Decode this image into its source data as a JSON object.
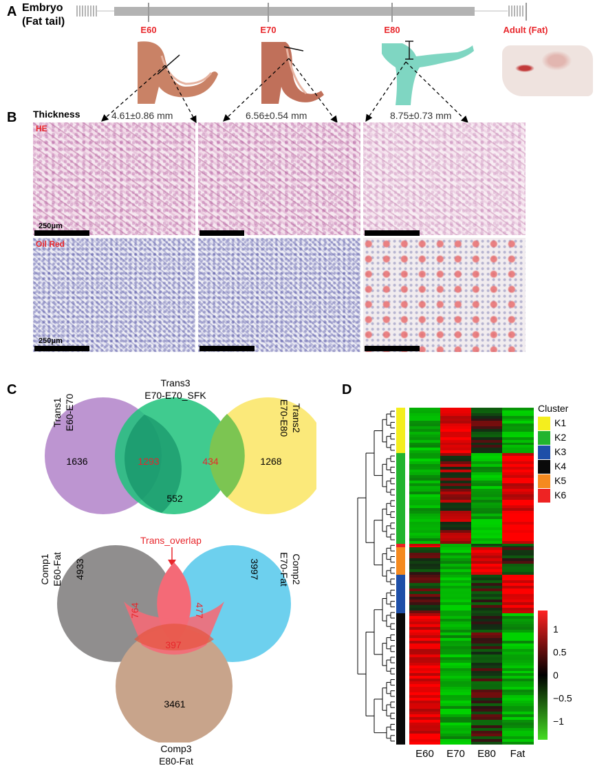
{
  "panelA": {
    "letter": "A",
    "embryo_label_1": "Embryo",
    "embryo_label_2": "(Fat tail)",
    "stages": [
      "E60",
      "E70",
      "E80",
      "Adult (Fat)"
    ]
  },
  "panelB": {
    "letter": "B",
    "thickness_label": "Thickness",
    "thickness_values": [
      "4.61±0.86 mm",
      "6.56±0.54 mm",
      "8.75±0.73 mm"
    ],
    "row_labels": [
      "HE",
      "Oil Red"
    ],
    "scale_labels": [
      "250μm",
      "250μm"
    ]
  },
  "panelC": {
    "letter": "C",
    "top_venn": {
      "sets": [
        {
          "line1": "Trans1",
          "line2": "E60-E70",
          "color": "#b98fcf"
        },
        {
          "line1": "Trans3",
          "line2": "E70-E70_SFK",
          "color": "#1fc27b"
        },
        {
          "line1": "Trans2",
          "line2": "E70-E80",
          "color": "#fbe97a"
        }
      ],
      "counts": {
        "trans1_only": "1636",
        "trans1_trans3": "1293",
        "trans3_trans2": "434",
        "trans2_only": "1268",
        "trans3_only": "552"
      }
    },
    "overlap_label": "Trans_overlap",
    "bottom_venn": {
      "sets": [
        {
          "line1": "Comp1",
          "line2": "E60-Fat",
          "color": "#8a8888"
        },
        {
          "line1": "Comp2",
          "line2": "E70-Fat",
          "color": "#6dd0ee"
        },
        {
          "line1": "Comp3",
          "line2": "E80-Fat",
          "color": "#c8a48b"
        }
      ],
      "counts": {
        "comp1_only": "4933",
        "comp1_overlap": "764",
        "comp2_overlap": "477",
        "comp2_only": "3997",
        "comp3_overlap": "397",
        "comp3_only": "3461"
      }
    }
  },
  "panelD": {
    "letter": "D",
    "legend_title": "Cluster",
    "clusters": [
      {
        "name": "K1",
        "color": "#f4ee1e"
      },
      {
        "name": "K2",
        "color": "#22b42e"
      },
      {
        "name": "K3",
        "color": "#1e4fa8"
      },
      {
        "name": "K4",
        "color": "#0a0a0a"
      },
      {
        "name": "K5",
        "color": "#f58a1f"
      },
      {
        "name": "K6",
        "color": "#ee2323"
      }
    ],
    "columns": [
      "E60",
      "E70",
      "E80",
      "Fat"
    ],
    "colorbar_ticks": [
      "1",
      "0.5",
      "0",
      "−0.5",
      "−1"
    ],
    "colorbar_tick_values": [
      1,
      0.5,
      0,
      -0.5,
      -1
    ],
    "colorbar_range": [
      -1.4,
      1.4
    ],
    "cluster_blocks": [
      {
        "cluster": "K1",
        "fraction": 0.135
      },
      {
        "cluster": "K2",
        "fraction": 0.27
      },
      {
        "cluster": "K6",
        "fraction": 0.01
      },
      {
        "cluster": "K5",
        "fraction": 0.08
      },
      {
        "cluster": "K3",
        "fraction": 0.115
      },
      {
        "cluster": "K4",
        "fraction": 0.39
      }
    ],
    "block_patterns": [
      [
        "low",
        "high",
        "mid",
        "low"
      ],
      [
        "low",
        "mixhigh",
        "low",
        "high"
      ],
      [
        "high",
        "low",
        "mid",
        "mid"
      ],
      [
        "mid",
        "low",
        "high",
        "mid"
      ],
      [
        "mid",
        "low",
        "mid",
        "high"
      ],
      [
        "high",
        "low",
        "mid",
        "low"
      ]
    ]
  }
}
